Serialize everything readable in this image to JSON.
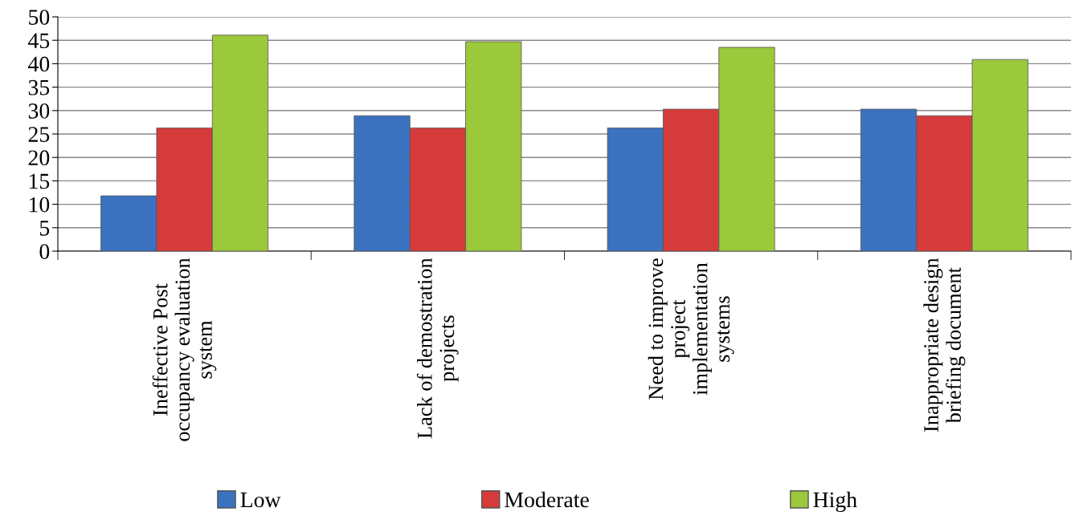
{
  "chart_data": {
    "type": "bar",
    "categories": [
      "Ineffective Post\noccupancy evaluation\nsystem",
      "Lack of demostration\nprojects",
      "Need to improve\nproject\nimplementation\nsystems",
      "Inappropriate design\nbriefing document"
    ],
    "series": [
      {
        "name": "Low",
        "color": "#3a72c0",
        "values": [
          11.8,
          28.9,
          26.3,
          30.3
        ]
      },
      {
        "name": "Moderate",
        "color": "#d63b3b",
        "values": [
          26.3,
          26.3,
          30.3,
          28.9
        ]
      },
      {
        "name": "High",
        "color": "#9cc93c",
        "values": [
          46.1,
          44.7,
          43.5,
          40.9
        ]
      }
    ],
    "ylim": [
      0,
      50
    ],
    "yticks": [
      0,
      5,
      10,
      15,
      20,
      25,
      30,
      35,
      40,
      45,
      50
    ],
    "grid": "y",
    "legend": "bottom"
  }
}
